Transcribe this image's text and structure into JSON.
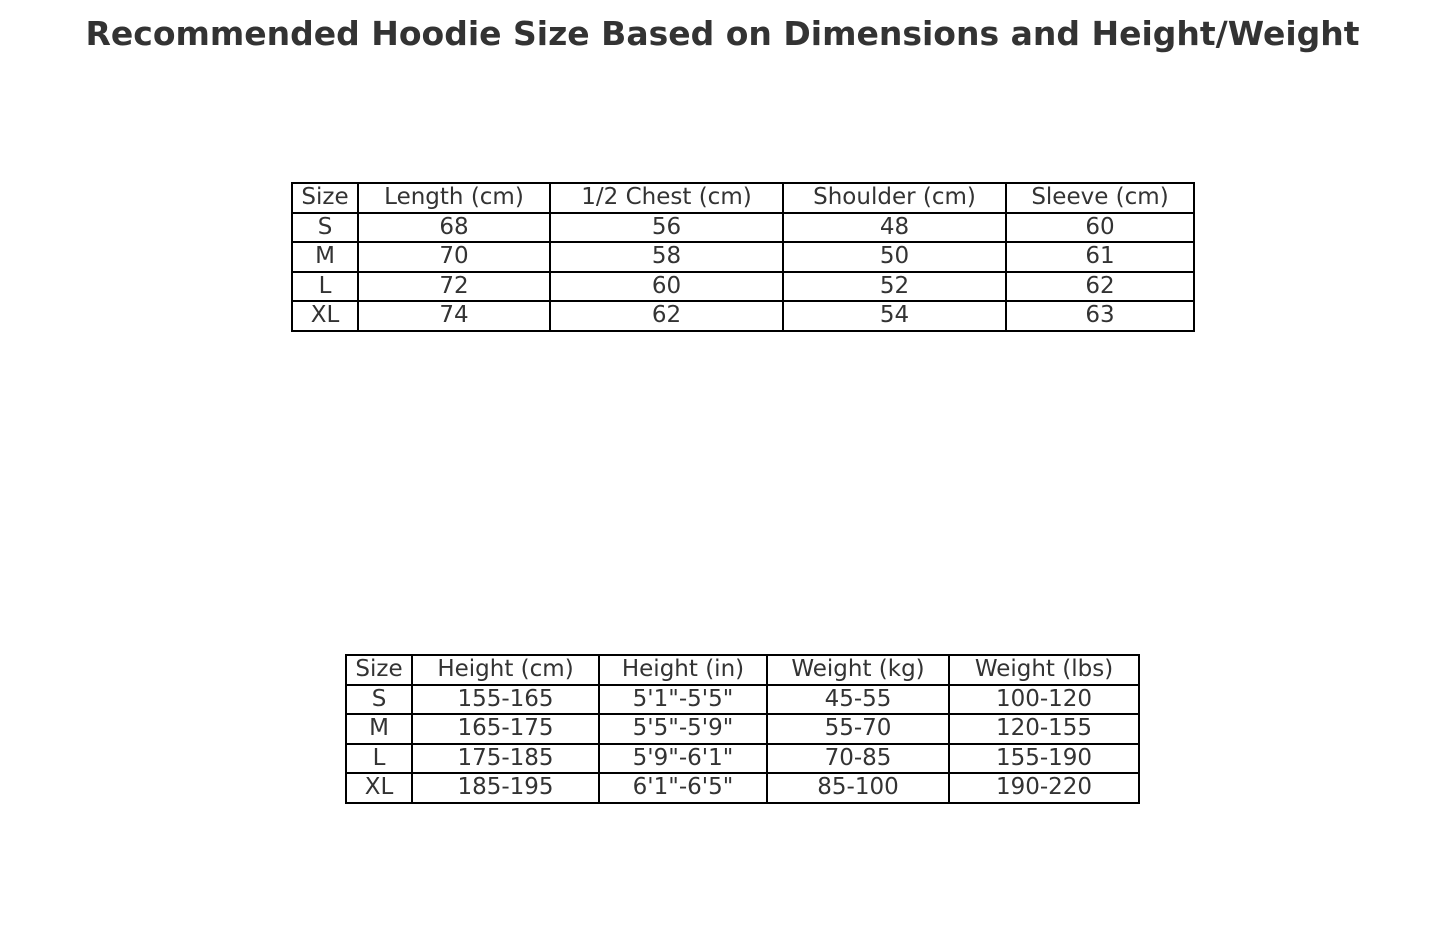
{
  "chart_data": {
    "type": "table",
    "title": "Recommended Hoodie Size Based on Dimensions and Height/Weight",
    "tables": [
      {
        "columns": [
          "Size",
          "Length (cm)",
          "1/2 Chest (cm)",
          "Shoulder (cm)",
          "Sleeve (cm)"
        ],
        "rows": [
          [
            "S",
            "68",
            "56",
            "48",
            "60"
          ],
          [
            "M",
            "70",
            "58",
            "50",
            "61"
          ],
          [
            "L",
            "72",
            "60",
            "52",
            "62"
          ],
          [
            "XL",
            "74",
            "62",
            "54",
            "63"
          ]
        ]
      },
      {
        "columns": [
          "Size",
          "Height (cm)",
          "Height (in)",
          "Weight (kg)",
          "Weight (lbs)"
        ],
        "rows": [
          [
            "S",
            "155-165",
            "5'1\"-5'5\"",
            "45-55",
            "100-120"
          ],
          [
            "M",
            "165-175",
            "5'5\"-5'9\"",
            "55-70",
            "120-155"
          ],
          [
            "L",
            "175-185",
            "5'9\"-6'1\"",
            "70-85",
            "155-190"
          ],
          [
            "XL",
            "185-195",
            "6'1\"-6'5\"",
            "85-100",
            "190-220"
          ]
        ]
      }
    ]
  }
}
